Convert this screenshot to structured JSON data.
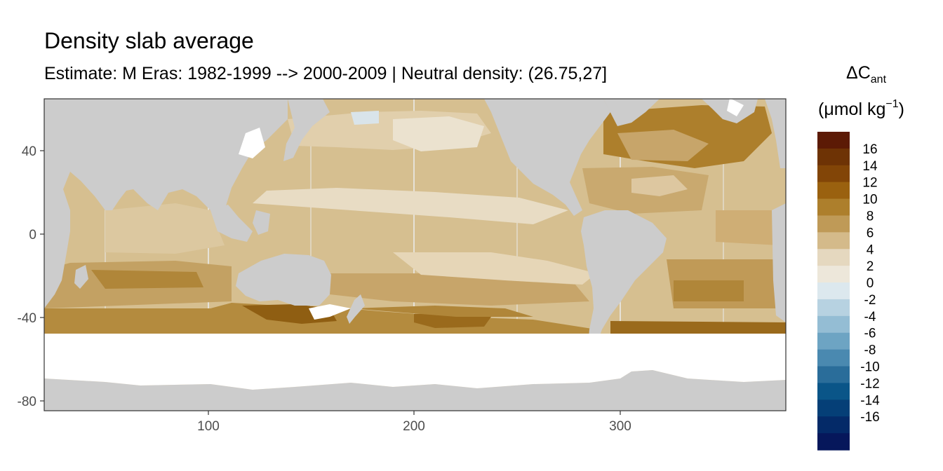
{
  "title": "Density slab average",
  "subtitle": "Estimate: M Eras: 1982-1999 --> 2000-2009 | Neutral density: (26.75,27]",
  "legend": {
    "title_symbol": "ΔC",
    "title_subscript": "ant",
    "title_unit_prefix": "(μmol kg",
    "title_unit_exponent": "−1",
    "title_unit_suffix": ")",
    "bins": [
      {
        "color": "#5c1a05"
      },
      {
        "color": "#6e3305"
      },
      {
        "color": "#824507"
      },
      {
        "color": "#9a610f"
      },
      {
        "color": "#ad7f2c"
      },
      {
        "color": "#bf9a57"
      },
      {
        "color": "#d4ba8a"
      },
      {
        "color": "#e5d8bf"
      },
      {
        "color": "#ede7da"
      },
      {
        "color": "#dce8ee"
      },
      {
        "color": "#b7d2e1"
      },
      {
        "color": "#94bdd4"
      },
      {
        "color": "#6da4c3"
      },
      {
        "color": "#4a89b0"
      },
      {
        "color": "#2a6d9a"
      },
      {
        "color": "#0a5588"
      },
      {
        "color": "#053f77"
      },
      {
        "color": "#042a68"
      },
      {
        "color": "#06175b"
      }
    ],
    "labels": [
      "16",
      "14",
      "12",
      "10",
      "8",
      "6",
      "4",
      "2",
      "0",
      "-2",
      "-4",
      "-6",
      "-8",
      "-10",
      "-12",
      "-14",
      "-16"
    ]
  },
  "axes": {
    "x_ticks": [
      "100",
      "200",
      "300"
    ],
    "y_ticks": [
      "40",
      "0",
      "-40",
      "-80"
    ],
    "x_values": [
      100,
      200,
      300
    ],
    "y_values": [
      40,
      0,
      -40,
      -80
    ],
    "xlim": [
      20,
      380
    ],
    "ylim": [
      -85,
      65
    ]
  },
  "colors": {
    "land": "#cccccc",
    "no_data": "#ffffff",
    "grid": "#ebebeb",
    "panel_border": "#333333"
  },
  "chart_data": {
    "type": "heatmap",
    "xlim": [
      20,
      380
    ],
    "ylim": [
      -85,
      65
    ],
    "legend_placement": "right",
    "grid": true,
    "value_bins": [
      16,
      14,
      12,
      10,
      8,
      6,
      4,
      2,
      0,
      -2,
      -4,
      -6,
      -8,
      -10,
      -12,
      -14,
      -16
    ]
  }
}
